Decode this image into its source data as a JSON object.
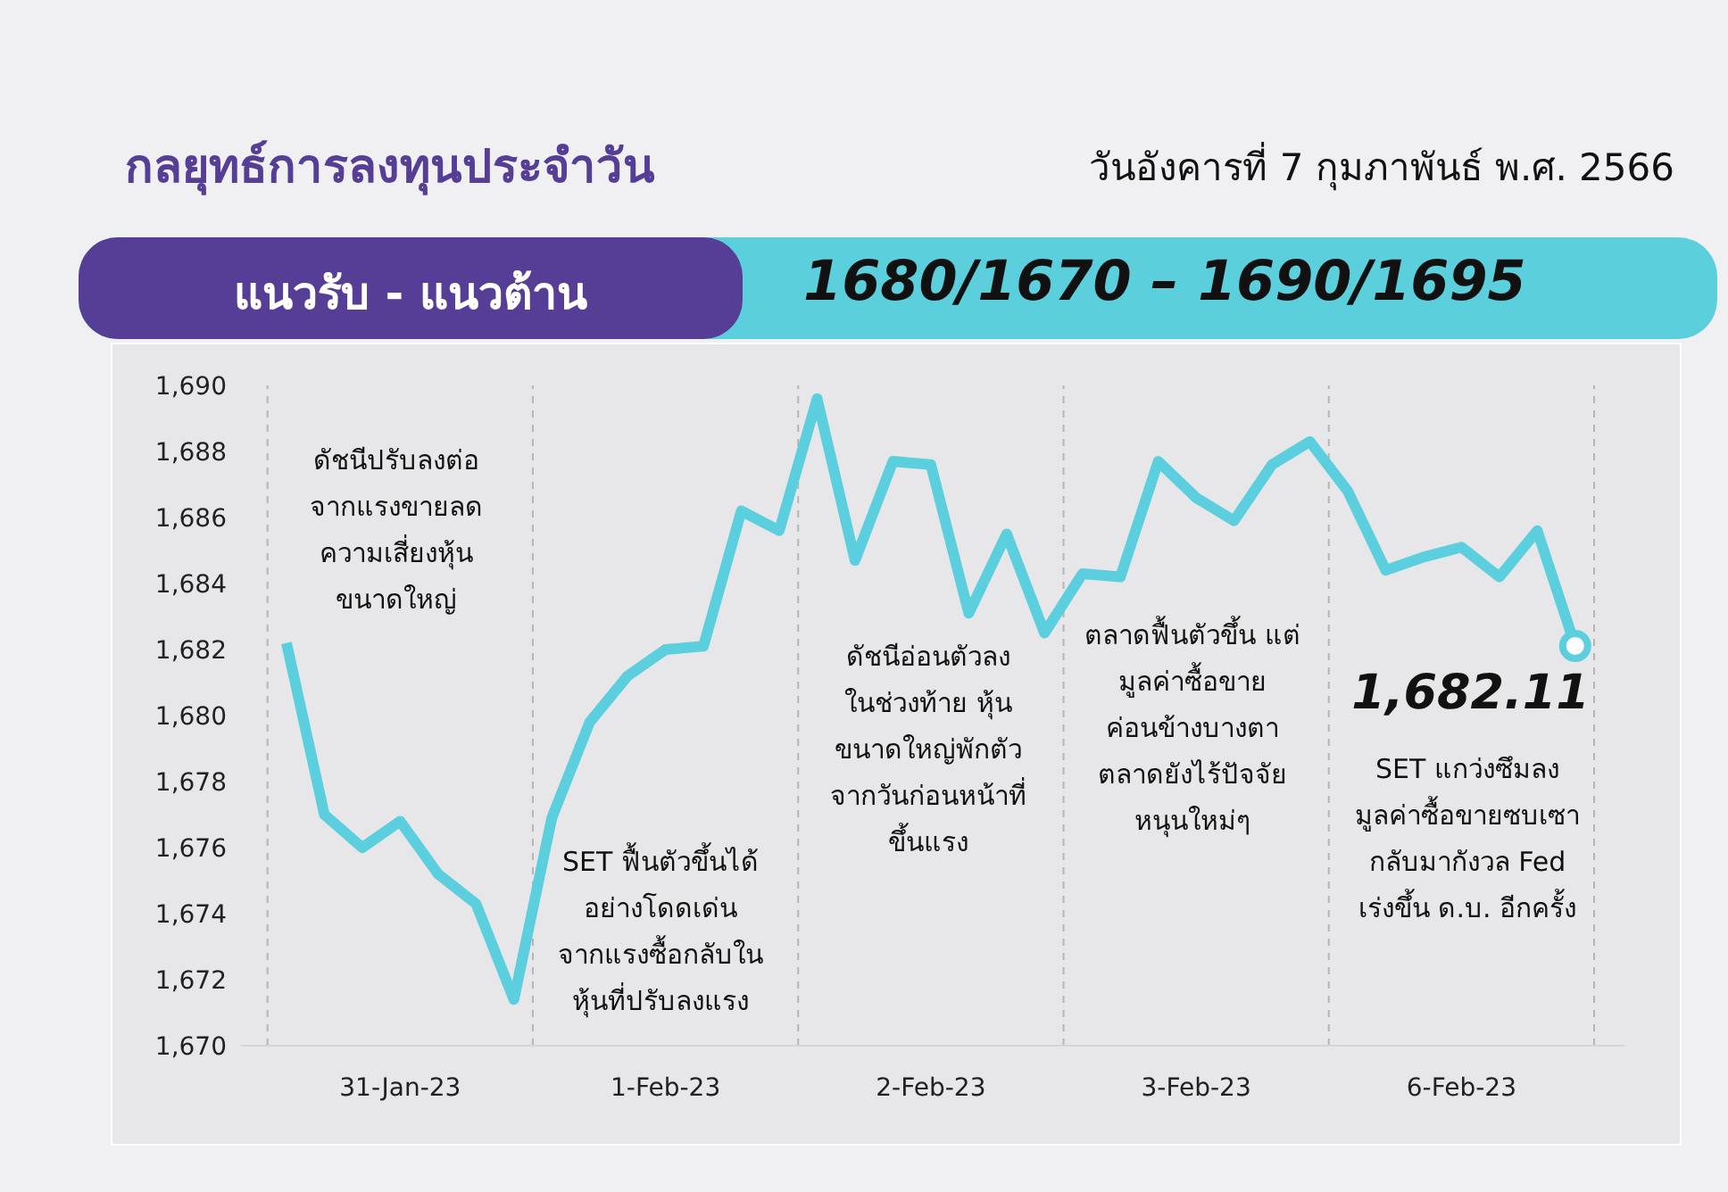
{
  "chart_data": {
    "type": "line",
    "title": "กลยุทธ์การลงทุนประจำวัน",
    "subtitle": "วันอังคารที่ 7 กุมภาพันธ์ พ.ศ. 2566",
    "annotations": [
      "ดัชนีปรับลงต่อ\nจากแรงขายลด\nความเสี่ยงหุ้น\nขนาดใหญ่",
      "SET ฟื้นตัวขึ้นได้\nอย่างโดดเด่น\nจากแรงซื้อกลับใน\nหุ้นที่ปรับลงแรง",
      "ดัชนีอ่อนตัวลง\nในช่วงท้าย หุ้น\nขนาดใหญ่พักตัว\nจากวันก่อนหน้าที่\nขึ้นแรง",
      "ตลาดฟื้นตัวขึ้น แต่\nมูลค่าซื้อขาย\nค่อนข้างบางตา\nตลาดยังไร้ปัจจัย\nหนุนใหม่ๆ",
      "SET แกว่งซึมลง\nมูลค่าซื้อขายซบเซา\nกลับมากังวล Fed\nเร่งขึ้น ด.บ. อีกครั้ง",
      "แนวรับ - แนวต้าน",
      "1680/1670 – 1690/1695"
    ],
    "categories": [
      null,
      null,
      null,
      "31-Jan-23",
      null,
      null,
      null,
      null,
      null,
      null,
      "1-Feb-23",
      null,
      null,
      null,
      null,
      null,
      null,
      "2-Feb-23",
      null,
      null,
      null,
      null,
      null,
      null,
      "3-Feb-23",
      null,
      null,
      null,
      null,
      null,
      null,
      "6-Feb-23",
      null,
      null,
      null
    ],
    "series": [
      {
        "color": "#5bcfdd",
        "values": [
          1682.2,
          1677.0,
          1676.0,
          1676.8,
          1675.2,
          1674.3,
          1671.4,
          1676.9,
          1679.8,
          1681.2,
          1682.0,
          1682.1,
          1686.2,
          1685.6,
          1689.6,
          1684.7,
          1687.7,
          1687.6,
          1683.1,
          1685.5,
          1682.5,
          1684.3,
          1684.2,
          1687.7,
          1686.6,
          1685.9,
          1687.6,
          1688.3,
          1686.8,
          1684.4,
          1684.8,
          1685.1,
          1684.2,
          1685.6,
          1682.11
        ],
        "value_labels": [
          null,
          null,
          null,
          null,
          null,
          null,
          null,
          null,
          null,
          null,
          null,
          null,
          null,
          null,
          null,
          null,
          null,
          null,
          null,
          null,
          null,
          null,
          null,
          null,
          null,
          null,
          null,
          null,
          null,
          null,
          null,
          null,
          null,
          null,
          "1,682.11"
        ]
      }
    ],
    "ylim": [
      1670,
      1690
    ],
    "yticks": [
      {
        "value": 1670,
        "label": "1,670"
      },
      {
        "value": 1672,
        "label": "1,672"
      },
      {
        "value": 1674,
        "label": "1,674"
      },
      {
        "value": 1676,
        "label": "1,676"
      },
      {
        "value": 1678,
        "label": "1,678"
      },
      {
        "value": 1680,
        "label": "1,680"
      },
      {
        "value": 1682,
        "label": "1,682"
      },
      {
        "value": 1684,
        "label": "1,684"
      },
      {
        "value": 1686,
        "label": "1,686"
      },
      {
        "value": 1688,
        "label": "1,688"
      },
      {
        "value": 1690,
        "label": "1,690"
      }
    ],
    "line_style": "solid",
    "grid": false,
    "legend": false
  }
}
